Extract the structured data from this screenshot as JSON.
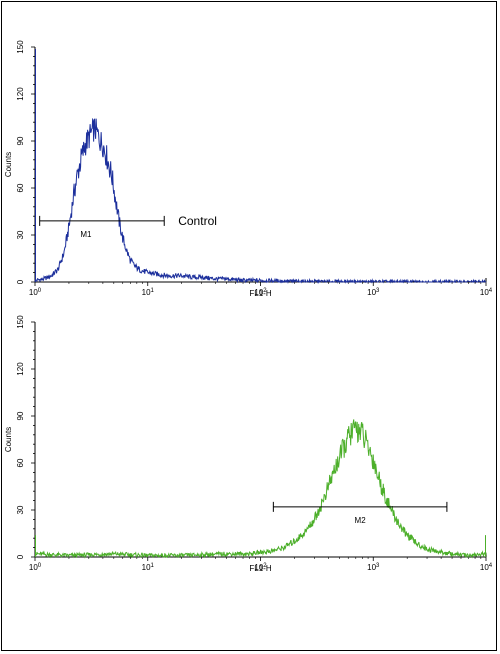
{
  "chart_data": [
    {
      "type": "line",
      "xlabel": "FL1-H",
      "ylabel": "Counts",
      "xscale": "log",
      "xlim": [
        1,
        10000
      ],
      "ylim": [
        0,
        150
      ],
      "yticks": [
        0,
        30,
        60,
        90,
        120,
        150
      ],
      "xticks": [
        {
          "base": "10",
          "exp": "0"
        },
        {
          "base": "10",
          "exp": "1"
        },
        {
          "base": "10",
          "exp": "2"
        },
        {
          "base": "10",
          "exp": "3"
        },
        {
          "base": "10",
          "exp": "4"
        }
      ],
      "color": "#1c2f9c",
      "series": [
        {
          "x": [
            1.0,
            1.2,
            1.4,
            1.6,
            1.8,
            2.0,
            2.2,
            2.4,
            2.6,
            2.8,
            3.0,
            3.2,
            3.4,
            3.6,
            3.8,
            4.0,
            4.4,
            4.8,
            5.2,
            5.6,
            6.0,
            6.5,
            7.0,
            7.5,
            8.0,
            9.0,
            10,
            12,
            15,
            20,
            25,
            30,
            40,
            50,
            70,
            100,
            150,
            200,
            400,
            1000,
            10000
          ],
          "y": [
            1,
            2,
            4,
            8,
            18,
            35,
            55,
            70,
            80,
            88,
            92,
            96,
            98,
            94,
            90,
            88,
            78,
            68,
            52,
            38,
            28,
            20,
            14,
            11,
            9,
            7,
            6,
            5,
            4,
            4,
            3,
            3,
            2,
            2,
            1,
            1,
            0.6,
            0.4,
            0.2,
            0.1,
            0
          ]
        }
      ],
      "marker": {
        "label": "M1",
        "x_range": [
          1.1,
          14
        ]
      },
      "annotation": "Control"
    },
    {
      "type": "line",
      "xlabel": "FL1-H",
      "ylabel": "Counts",
      "xscale": "log",
      "xlim": [
        1,
        10000
      ],
      "ylim": [
        0,
        150
      ],
      "yticks": [
        0,
        30,
        60,
        90,
        120,
        150
      ],
      "xticks": [
        {
          "base": "10",
          "exp": "0"
        },
        {
          "base": "10",
          "exp": "1"
        },
        {
          "base": "10",
          "exp": "2"
        },
        {
          "base": "10",
          "exp": "3"
        },
        {
          "base": "10",
          "exp": "4"
        }
      ],
      "color": "#4caf2a",
      "series": [
        {
          "x": [
            1,
            2,
            5,
            10,
            20,
            50,
            80,
            100,
            130,
            160,
            200,
            250,
            300,
            350,
            400,
            450,
            500,
            550,
            600,
            650,
            700,
            750,
            800,
            850,
            900,
            1000,
            1100,
            1200,
            1400,
            1600,
            1800,
            2000,
            2500,
            3000,
            4000,
            5000,
            7000,
            10000
          ],
          "y": [
            2,
            1,
            2,
            1,
            1,
            2,
            2,
            3,
            4,
            6,
            10,
            16,
            24,
            34,
            45,
            55,
            63,
            70,
            76,
            80,
            82,
            81,
            79,
            74,
            70,
            62,
            52,
            44,
            32,
            24,
            18,
            14,
            8,
            5,
            3,
            2,
            1,
            2
          ]
        }
      ],
      "marker": {
        "label": "M2",
        "x_range": [
          130,
          4500
        ]
      }
    }
  ]
}
